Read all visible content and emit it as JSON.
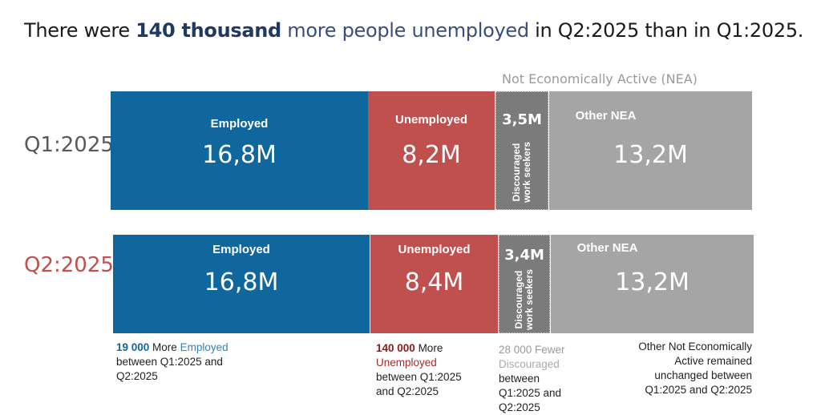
{
  "title": {
    "pre": "There were ",
    "highlight": "140 thousand",
    "mid": " more people unemployed",
    "post": " in Q2:2025 than in Q1:2025."
  },
  "nea_label": "Not Economically Active (NEA)",
  "chart_data": {
    "type": "bar",
    "orientation": "horizontal-stacked",
    "categories": [
      "Q1:2025",
      "Q2:2025"
    ],
    "unit": "million",
    "series": [
      {
        "name": "Employed",
        "values": [
          16.8,
          16.8
        ],
        "labels": [
          "16,8M",
          "16,8M"
        ],
        "color": "#10679e"
      },
      {
        "name": "Unemployed",
        "values": [
          8.2,
          8.4
        ],
        "labels": [
          "8,2M",
          "8,4M"
        ],
        "color": "#c0504d"
      },
      {
        "name": "Discouraged work seekers",
        "values": [
          3.5,
          3.4
        ],
        "labels": [
          "3,5M",
          "3,4M"
        ],
        "color": "#7b7b7b"
      },
      {
        "name": "Other NEA",
        "values": [
          13.2,
          13.2
        ],
        "labels": [
          "13,2M",
          "13,2M"
        ],
        "color": "#a5a5a5"
      }
    ],
    "q2_label_color": "#c0504d"
  },
  "notes": {
    "employed": {
      "num": "19 000",
      "word": " More ",
      "cat": "Employed",
      "rest": "between Q1:2025 and Q2:2025"
    },
    "unemployed": {
      "num": "140 000",
      "word": " More",
      "cat": "Unemployed",
      "rest": "between Q1:2025 and Q2:2025"
    },
    "discouraged": {
      "num": "28 000 Fewer",
      "cat": "Discouraged",
      "rest": "between Q1:2025 and Q2:2025"
    },
    "other": {
      "text": "Other Not Economically Active remained unchanged between Q1:2025 and Q2:2025"
    }
  }
}
